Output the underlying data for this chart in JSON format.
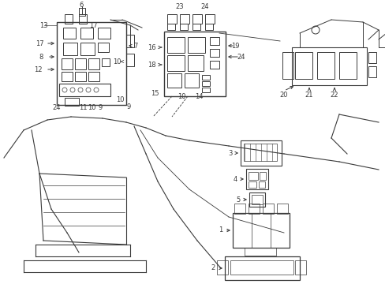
{
  "bg_color": "#ffffff",
  "lc": "#3a3a3a",
  "fig_w": 4.89,
  "fig_h": 3.6,
  "dpi": 100,
  "xmax": 489,
  "ymax": 360
}
